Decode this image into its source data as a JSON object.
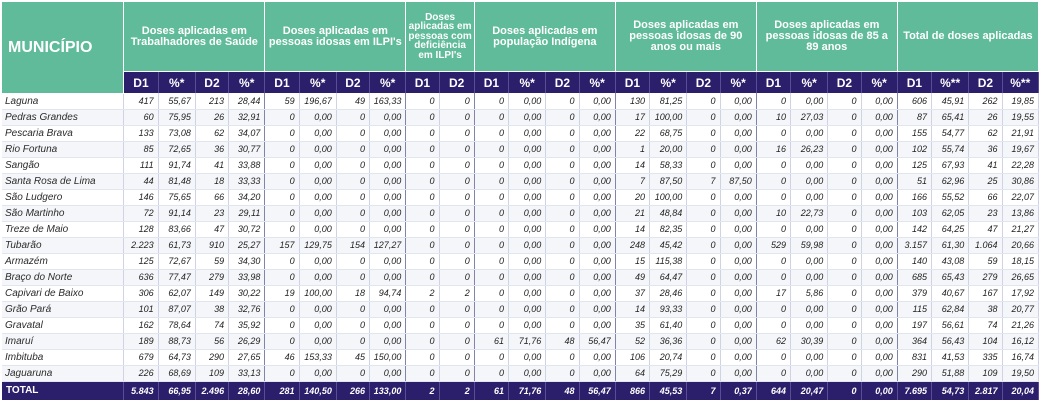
{
  "header": {
    "municipio": "MUNICÍPIO",
    "groups": [
      "Doses aplicadas em Trabalhadores de Saúde",
      "Doses aplicadas em pessoas idosas em ILPI's",
      "Doses aplicadas em pessoas com deficiência em ILPI's",
      "Doses aplicadas em população Indígena",
      "Doses aplicadas em pessoas idosas de 90 anos ou mais",
      "Doses aplicadas em pessoas idosas de 85 a 89 anos",
      "Total de doses aplicadas"
    ],
    "sub": {
      "d1": "D1",
      "pct": "%*",
      "d2": "D2",
      "pct_total": "%**"
    }
  },
  "rows": [
    {
      "name": "Laguna",
      "c": [
        "417",
        "55,67",
        "213",
        "28,44",
        "59",
        "196,67",
        "49",
        "163,33",
        "0",
        "0",
        "0",
        "0,00",
        "0",
        "0,00",
        "130",
        "81,25",
        "0",
        "0,00",
        "0",
        "0,00",
        "0",
        "0,00",
        "606",
        "45,91",
        "262",
        "19,85"
      ]
    },
    {
      "name": "Pedras Grandes",
      "c": [
        "60",
        "75,95",
        "26",
        "32,91",
        "0",
        "0,00",
        "0",
        "0,00",
        "0",
        "0",
        "0",
        "0,00",
        "0",
        "0,00",
        "17",
        "100,00",
        "0",
        "0,00",
        "10",
        "27,03",
        "0",
        "0,00",
        "87",
        "65,41",
        "26",
        "19,55"
      ]
    },
    {
      "name": "Pescaria Brava",
      "c": [
        "133",
        "73,08",
        "62",
        "34,07",
        "0",
        "0,00",
        "0",
        "0,00",
        "0",
        "0",
        "0",
        "0,00",
        "0",
        "0,00",
        "22",
        "68,75",
        "0",
        "0,00",
        "0",
        "0,00",
        "0",
        "0,00",
        "155",
        "54,77",
        "62",
        "21,91"
      ]
    },
    {
      "name": "Rio Fortuna",
      "c": [
        "85",
        "72,65",
        "36",
        "30,77",
        "0",
        "0,00",
        "0",
        "0,00",
        "0",
        "0",
        "0",
        "0,00",
        "0",
        "0,00",
        "1",
        "20,00",
        "0",
        "0,00",
        "16",
        "26,23",
        "0",
        "0,00",
        "102",
        "55,74",
        "36",
        "19,67"
      ]
    },
    {
      "name": "Sangão",
      "c": [
        "111",
        "91,74",
        "41",
        "33,88",
        "0",
        "0,00",
        "0",
        "0,00",
        "0",
        "0",
        "0",
        "0,00",
        "0",
        "0,00",
        "14",
        "58,33",
        "0",
        "0,00",
        "0",
        "0,00",
        "0",
        "0,00",
        "125",
        "67,93",
        "41",
        "22,28"
      ]
    },
    {
      "name": "Santa Rosa de Lima",
      "c": [
        "44",
        "81,48",
        "18",
        "33,33",
        "0",
        "0,00",
        "0",
        "0,00",
        "0",
        "0",
        "0",
        "0,00",
        "0",
        "0,00",
        "7",
        "87,50",
        "7",
        "87,50",
        "0",
        "0,00",
        "0",
        "0,00",
        "51",
        "62,96",
        "25",
        "30,86"
      ]
    },
    {
      "name": "São Ludgero",
      "c": [
        "146",
        "75,65",
        "66",
        "34,20",
        "0",
        "0,00",
        "0",
        "0,00",
        "0",
        "0",
        "0",
        "0,00",
        "0",
        "0,00",
        "20",
        "100,00",
        "0",
        "0,00",
        "0",
        "0,00",
        "0",
        "0,00",
        "166",
        "55,52",
        "66",
        "22,07"
      ]
    },
    {
      "name": "São Martinho",
      "c": [
        "72",
        "91,14",
        "23",
        "29,11",
        "0",
        "0,00",
        "0",
        "0,00",
        "0",
        "0",
        "0",
        "0,00",
        "0",
        "0,00",
        "21",
        "48,84",
        "0",
        "0,00",
        "10",
        "22,73",
        "0",
        "0,00",
        "103",
        "62,05",
        "23",
        "13,86"
      ]
    },
    {
      "name": "Treze de Maio",
      "c": [
        "128",
        "83,66",
        "47",
        "30,72",
        "0",
        "0,00",
        "0",
        "0,00",
        "0",
        "0",
        "0",
        "0,00",
        "0",
        "0,00",
        "14",
        "82,35",
        "0",
        "0,00",
        "0",
        "0,00",
        "0",
        "0,00",
        "142",
        "64,25",
        "47",
        "21,27"
      ]
    },
    {
      "name": "Tubarão",
      "c": [
        "2.223",
        "61,73",
        "910",
        "25,27",
        "157",
        "129,75",
        "154",
        "127,27",
        "0",
        "0",
        "0",
        "0,00",
        "0",
        "0,00",
        "248",
        "45,42",
        "0",
        "0,00",
        "529",
        "59,98",
        "0",
        "0,00",
        "3.157",
        "61,30",
        "1.064",
        "20,66"
      ]
    },
    {
      "name": "Armazém",
      "c": [
        "125",
        "72,67",
        "59",
        "34,30",
        "0",
        "0,00",
        "0",
        "0,00",
        "0",
        "0",
        "0",
        "0,00",
        "0",
        "0,00",
        "15",
        "115,38",
        "0",
        "0,00",
        "0",
        "0,00",
        "0",
        "0,00",
        "140",
        "43,08",
        "59",
        "18,15"
      ]
    },
    {
      "name": "Braço do Norte",
      "c": [
        "636",
        "77,47",
        "279",
        "33,98",
        "0",
        "0,00",
        "0",
        "0,00",
        "0",
        "0",
        "0",
        "0,00",
        "0",
        "0,00",
        "49",
        "64,47",
        "0",
        "0,00",
        "0",
        "0,00",
        "0",
        "0,00",
        "685",
        "65,43",
        "279",
        "26,65"
      ]
    },
    {
      "name": "Capivari de Baixo",
      "c": [
        "306",
        "62,07",
        "149",
        "30,22",
        "19",
        "100,00",
        "18",
        "94,74",
        "2",
        "2",
        "0",
        "0,00",
        "0",
        "0,00",
        "37",
        "28,46",
        "0",
        "0,00",
        "17",
        "5,86",
        "0",
        "0,00",
        "379",
        "40,67",
        "167",
        "17,92"
      ]
    },
    {
      "name": "Grão Pará",
      "c": [
        "101",
        "87,07",
        "38",
        "32,76",
        "0",
        "0,00",
        "0",
        "0,00",
        "0",
        "0",
        "0",
        "0,00",
        "0",
        "0,00",
        "14",
        "93,33",
        "0",
        "0,00",
        "0",
        "0,00",
        "0",
        "0,00",
        "115",
        "62,84",
        "38",
        "20,77"
      ]
    },
    {
      "name": "Gravatal",
      "c": [
        "162",
        "78,64",
        "74",
        "35,92",
        "0",
        "0,00",
        "0",
        "0,00",
        "0",
        "0",
        "0",
        "0,00",
        "0",
        "0,00",
        "35",
        "61,40",
        "0",
        "0,00",
        "0",
        "0,00",
        "0",
        "0,00",
        "197",
        "56,61",
        "74",
        "21,26"
      ]
    },
    {
      "name": "Imaruí",
      "c": [
        "189",
        "88,73",
        "56",
        "26,29",
        "0",
        "0,00",
        "0",
        "0,00",
        "0",
        "0",
        "61",
        "71,76",
        "48",
        "56,47",
        "52",
        "36,36",
        "0",
        "0,00",
        "62",
        "30,39",
        "0",
        "0,00",
        "364",
        "56,43",
        "104",
        "16,12"
      ]
    },
    {
      "name": "Imbituba",
      "c": [
        "679",
        "64,73",
        "290",
        "27,65",
        "46",
        "153,33",
        "45",
        "150,00",
        "0",
        "0",
        "0",
        "0,00",
        "0",
        "0,00",
        "106",
        "20,74",
        "0",
        "0,00",
        "0",
        "0,00",
        "0",
        "0,00",
        "831",
        "41,53",
        "335",
        "16,74"
      ]
    },
    {
      "name": "Jaguaruna",
      "c": [
        "226",
        "68,69",
        "109",
        "33,13",
        "0",
        "0,00",
        "0",
        "0,00",
        "0",
        "0",
        "0",
        "0,00",
        "0",
        "0,00",
        "64",
        "75,29",
        "0",
        "0,00",
        "0",
        "0,00",
        "0",
        "0,00",
        "290",
        "51,88",
        "109",
        "19,50"
      ]
    }
  ],
  "total": {
    "name": "TOTAL",
    "c": [
      "5.843",
      "66,95",
      "2.496",
      "28,60",
      "281",
      "140,50",
      "266",
      "133,00",
      "2",
      "2",
      "61",
      "71,76",
      "48",
      "56,47",
      "866",
      "45,53",
      "7",
      "0,37",
      "644",
      "20,47",
      "0",
      "0,00",
      "7.695",
      "54,73",
      "2.817",
      "20,04"
    ]
  },
  "colors": {
    "header_green": "#5fbb99",
    "header_navy": "#2b1f6b"
  }
}
